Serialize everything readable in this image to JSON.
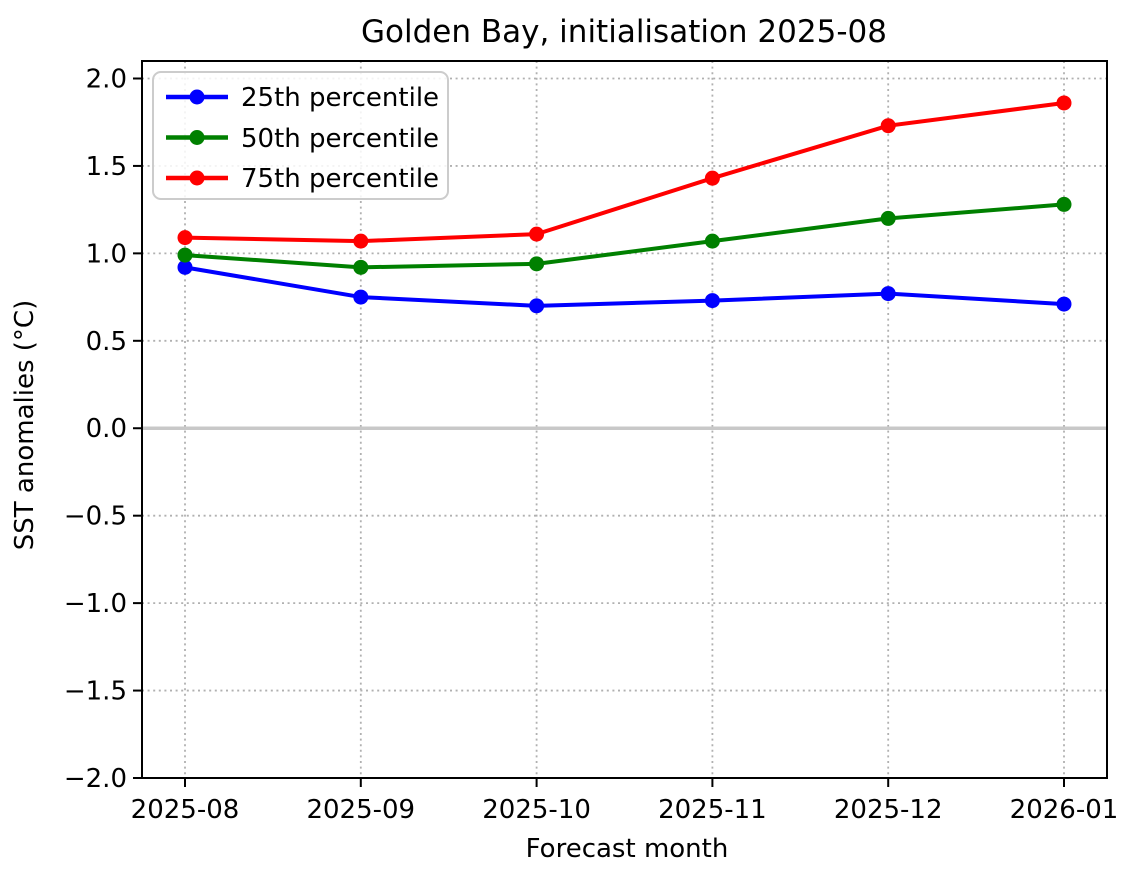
{
  "chart_data": {
    "type": "line",
    "title": "Golden Bay, initialisation 2025-08",
    "xlabel": "Forecast month",
    "ylabel": "SST anomalies (°C)",
    "categories": [
      "2025-08",
      "2025-09",
      "2025-10",
      "2025-11",
      "2025-12",
      "2026-01"
    ],
    "series": [
      {
        "name": "25th percentile",
        "color": "#0000ff",
        "values": [
          0.92,
          0.75,
          0.7,
          0.73,
          0.77,
          0.71
        ]
      },
      {
        "name": "50th percentile",
        "color": "#008000",
        "values": [
          0.99,
          0.92,
          0.94,
          1.07,
          1.2,
          1.28
        ]
      },
      {
        "name": "75th percentile",
        "color": "#ff0000",
        "values": [
          1.09,
          1.07,
          1.11,
          1.43,
          1.73,
          1.86
        ]
      }
    ],
    "ylim": [
      -2.0,
      2.1
    ],
    "yticks": [
      -2.0,
      -1.5,
      -1.0,
      -0.5,
      0.0,
      0.5,
      1.0,
      1.5,
      2.0
    ],
    "grid": true,
    "grid_style": "dotted",
    "legend_position": "upper left",
    "zero_line_color": "#c8c8c8",
    "background_color": "#ffffff"
  }
}
